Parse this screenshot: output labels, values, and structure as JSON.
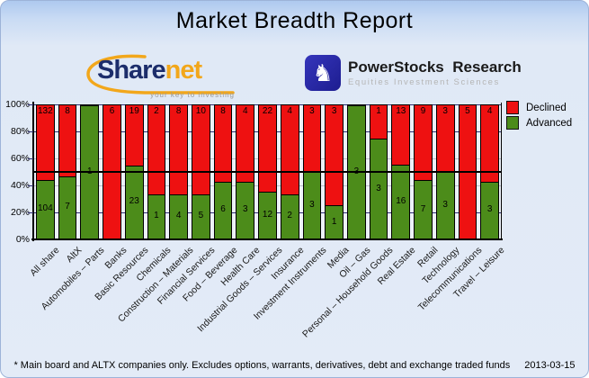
{
  "title": "Market Breadth Report",
  "logos": {
    "sharenet": {
      "wordmark_part1": "Share",
      "wordmark_part2": "net",
      "tagline": "your key to investing",
      "navy": "#1c2d6b",
      "orange": "#f2a71b"
    },
    "powerstocks": {
      "icon": "chess-knight-icon",
      "name": "PowerStocks  Research",
      "subtitle": "Equities Investment Sciences"
    }
  },
  "legend": [
    {
      "label": "Declined",
      "color": "#ee1111"
    },
    {
      "label": "Advanced",
      "color": "#4c8c1a"
    }
  ],
  "chart_data": {
    "type": "bar",
    "stacked": true,
    "normalized_to_percent": true,
    "title": "Market Breadth Report",
    "categories": [
      "All share",
      "AltX",
      "Automobiles – Parts",
      "Banks",
      "Basic Resources",
      "Chemicals",
      "Construction – Materials",
      "Financial Services",
      "Food – Beverage",
      "Health Care",
      "Industrial Goods – Services",
      "Insurance",
      "Investment Instruments",
      "Media",
      "Oil – Gas",
      "Personal – Household Goods",
      "Real Estate",
      "Retail",
      "Technology",
      "Telecommunications",
      "Travel – Leisure"
    ],
    "series": [
      {
        "name": "Declined",
        "color": "#ee1111",
        "values": [
          132,
          8,
          0,
          6,
          19,
          2,
          8,
          10,
          8,
          4,
          22,
          4,
          3,
          3,
          0,
          1,
          13,
          9,
          3,
          5,
          4
        ]
      },
      {
        "name": "Advanced",
        "color": "#4c8c1a",
        "values": [
          104,
          7,
          1,
          0,
          23,
          1,
          4,
          5,
          6,
          3,
          12,
          2,
          3,
          1,
          3,
          3,
          16,
          7,
          3,
          0,
          3
        ]
      }
    ],
    "value_labels": "company counts shown inside segments",
    "y_ticks": [
      "100%",
      "80%",
      "60%",
      "40%",
      "20%",
      "0%"
    ],
    "ylim": [
      0,
      100
    ],
    "grid": {
      "navy_lines_pct": [
        100,
        80,
        20
      ],
      "gray_lines_pct": [
        60,
        40
      ],
      "reference_line_pct": 50,
      "navy_color": "#2f2f73",
      "gray_color": "#bcc0ca"
    },
    "legend_position": "top-right"
  },
  "footer": {
    "note": "* Main board and ALTX companies only. Excludes options, warrants, derivatives, debt and exchange traded funds",
    "date": "2013-03-15"
  }
}
